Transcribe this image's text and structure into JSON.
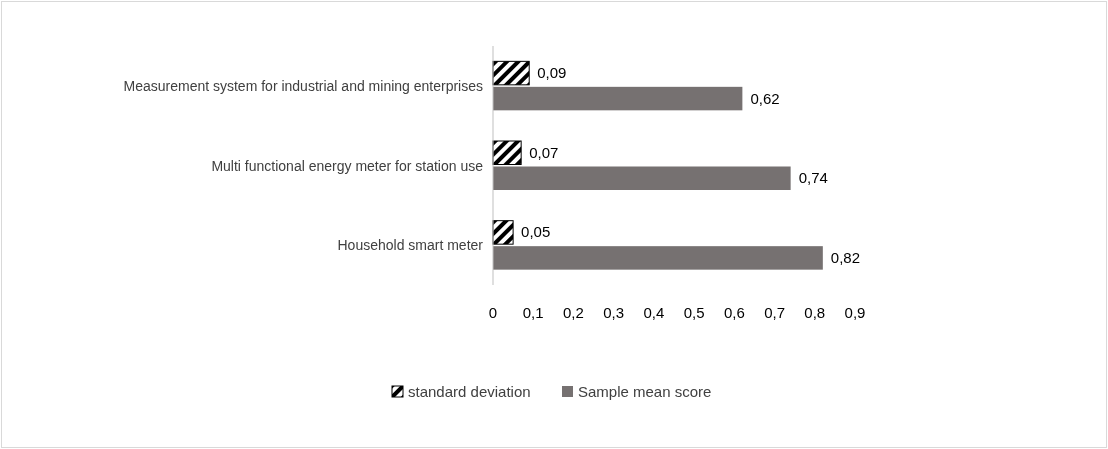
{
  "chart_data": {
    "type": "bar",
    "orientation": "horizontal",
    "categories": [
      "Measurement system for industrial and mining enterprises",
      "Multi functional energy meter for station use",
      "Household smart meter"
    ],
    "series": [
      {
        "name": "standard deviation",
        "color": "#000000",
        "values": [
          0.09,
          0.07,
          0.05
        ],
        "value_labels": [
          "0,09",
          "0,07",
          "0,05"
        ]
      },
      {
        "name": "Sample mean score",
        "color": "#767171",
        "values": [
          0.62,
          0.74,
          0.82
        ],
        "value_labels": [
          "0,62",
          "0,74",
          "0,82"
        ]
      }
    ],
    "xlim": [
      0,
      0.9
    ],
    "xticks": [
      {
        "value": 0,
        "label": "0"
      },
      {
        "value": 0.1,
        "label": "0,1"
      },
      {
        "value": 0.2,
        "label": "0,2"
      },
      {
        "value": 0.3,
        "label": "0,3"
      },
      {
        "value": 0.4,
        "label": "0,4"
      },
      {
        "value": 0.5,
        "label": "0,5"
      },
      {
        "value": 0.6,
        "label": "0,6"
      },
      {
        "value": 0.7,
        "label": "0,7"
      },
      {
        "value": 0.8,
        "label": "0,8"
      },
      {
        "value": 0.9,
        "label": "0,9"
      }
    ],
    "legend": "bottom"
  }
}
